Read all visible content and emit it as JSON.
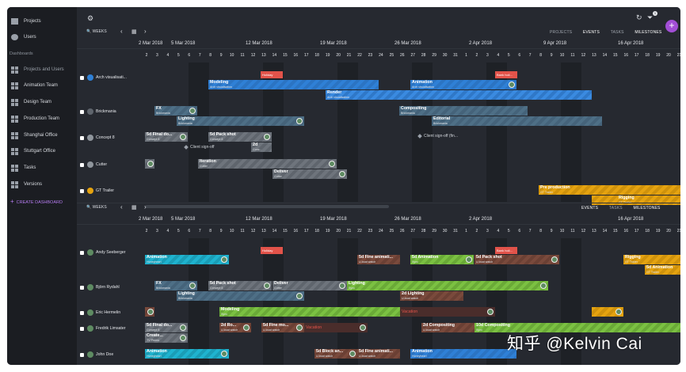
{
  "sidebar": {
    "top_items": [
      {
        "label": "Projects",
        "icon": "folder-icon"
      },
      {
        "label": "Users",
        "icon": "user-icon"
      }
    ],
    "section_label": "Dashboards",
    "dashboards": [
      {
        "label": "Projects and Users"
      },
      {
        "label": "Animation Team"
      },
      {
        "label": "Design Team"
      },
      {
        "label": "Production Team"
      },
      {
        "label": "Shanghai Office"
      },
      {
        "label": "Stuttgart Office"
      },
      {
        "label": "Tasks"
      },
      {
        "label": "Versions"
      }
    ],
    "create_label": "CREATE DASHBOARD"
  },
  "toolbar": {
    "weeks_label": "WEEKS",
    "prev": "‹",
    "next": "›",
    "calendar_icon": "calendar-icon",
    "refresh_icon": "refresh-icon",
    "filter_icon": "filter-icon",
    "settings_icon": "gear-icon",
    "filter_badge": "1",
    "add_label": "+"
  },
  "tabs_top": {
    "projects": "PROJECTS",
    "events": "EVENTS",
    "tasks": "TASKS",
    "milestones": "MILESTONES"
  },
  "tabs_bottom": {
    "events": "EVENTS",
    "tasks": "TASKS",
    "milestones": "MILESTONES"
  },
  "dates": [
    "2 Mar 2018",
    "5 Mar 2018",
    "12 Mar 2018",
    "19 Mar 2018",
    "26 Mar 2018",
    "2 Apr 2018",
    "9 Apr 2018",
    "16 Apr 2018"
  ],
  "dates_bottom": [
    "2 Mar 2018",
    "5 Mar 2018",
    "12 Mar 2018",
    "19 Mar 2018",
    "26 Mar 2018",
    "2 Apr 2018",
    "16 Apr 2018"
  ],
  "days": [
    "2",
    "3",
    "4",
    "5",
    "6",
    "7",
    "8",
    "9",
    "10",
    "11",
    "12",
    "13",
    "14",
    "15",
    "16",
    "17",
    "18",
    "19",
    "20",
    "21",
    "22",
    "23",
    "24",
    "25",
    "26",
    "27",
    "28",
    "29",
    "30",
    "31",
    "1",
    "2",
    "3",
    "4",
    "5",
    "6",
    "7",
    "8",
    "9",
    "10",
    "11",
    "12",
    "13",
    "14",
    "15",
    "16",
    "17",
    "18",
    "19",
    "20",
    "21"
  ],
  "projects": [
    {
      "name": "Arch visualisati...",
      "color": "#2f80d6"
    },
    {
      "name": "Brickmania",
      "color": "#5f656d"
    },
    {
      "name": "Concept 8",
      "color": "#8f959c"
    },
    {
      "name": "Cutter",
      "color": "#8f959c"
    },
    {
      "name": "GT Trailer",
      "color": "#e5a310"
    }
  ],
  "users": [
    {
      "name": "Andy Seeberger"
    },
    {
      "name": "Björn Rydahl"
    },
    {
      "name": "Eric Hermelin"
    },
    {
      "name": "Fredrik Limsater"
    },
    {
      "name": "John Doe"
    }
  ],
  "top_bars": {
    "holiday": "Holiday",
    "bank_holiday": "Bank holi...",
    "modeling": {
      "t": "Modeling",
      "s": "Arch visualisation"
    },
    "animation": {
      "t": "Animation",
      "s": "Arch visualisation"
    },
    "render": {
      "t": "Render",
      "s": "Arch visualisation"
    },
    "fx": {
      "t": "FX",
      "s": "Brickmania"
    },
    "compositing": {
      "t": "Compositing",
      "s": "Brickmania"
    },
    "lighting": {
      "t": "Lighting",
      "s": "Brickmania"
    },
    "editorial": {
      "t": "Editorial",
      "s": "Brickmania"
    },
    "final_do": {
      "t": "5d Final do...",
      "s": "Concept 8"
    },
    "pack_shot": {
      "t": "5d Pack shot",
      "s": "Concept 8"
    },
    "concept_small": {
      "t": "2d",
      "s": "Conc..."
    },
    "client_signoff": "Client sign-off",
    "client_signoff_fin": "Client sign-off (fin...",
    "iteration": {
      "t": "Iteration",
      "s": "Cutter"
    },
    "deliver": {
      "t": "Deliver",
      "s": "Cutter"
    },
    "pre_production": {
      "t": "Pre production",
      "s": "GT Trailer"
    },
    "rigging": {
      "t": "Rigging",
      "s": "GT Trailer"
    }
  },
  "bottom_bars": {
    "animation_andy": {
      "t": "Animation",
      "s": "Honeyheart"
    },
    "fine_anim": {
      "t": "5d Fine animati...",
      "s": "U-boat watch"
    },
    "animation_andy2": {
      "t": "5d Animation",
      "s": "Sync"
    },
    "pack_shot2": {
      "t": "5d Pack shot",
      "s": "U-boat watch"
    },
    "rigging2": {
      "t": "Rigging",
      "s": "GT Trailer"
    },
    "animation_andy3": {
      "t": "5d Animation",
      "s": "GT Trailer"
    },
    "fx2": {
      "t": "FX",
      "s": "Brickmania"
    },
    "pack_shot3": {
      "t": "5d Pack shot",
      "s": "Concept 8"
    },
    "deliver2": {
      "t": "Deliver",
      "s": "Cutter"
    },
    "lighting2": {
      "t": "Lighting",
      "s": "Sync"
    },
    "lighting3": {
      "t": "Lighting",
      "s": "Brickmania"
    },
    "lighting4": {
      "t": "2d Lighting",
      "s": "U-boat watch"
    },
    "modeling2": {
      "t": "Modeling",
      "s": "Sync"
    },
    "vacation": "Vacation",
    "final_do2": {
      "t": "5d Final do...",
      "s": "Concept 8"
    },
    "create": {
      "t": "Create...",
      "s": "TV Promo"
    },
    "ro": {
      "t": "2d Ro...",
      "s": "U-boat watch"
    },
    "fine_mo": {
      "t": "5d Fine mo...",
      "s": "U-boat watch"
    },
    "compositing2": {
      "t": "2d Compositing",
      "s": "U-boat watch"
    },
    "compositing3": {
      "t": "10d Compositing",
      "s": "Sync"
    },
    "animation_john": {
      "t": "Animation",
      "s": "Honeyheart"
    },
    "block_an": {
      "t": "5d Block an...",
      "s": "U-boat watch"
    },
    "fine_anim2": {
      "t": "5d Fine animati...",
      "s": "U-boat watch"
    },
    "animation_john2": {
      "t": "Animation",
      "s": "Honeyheart"
    }
  },
  "watermark": "知乎 @Kelvin Cai"
}
